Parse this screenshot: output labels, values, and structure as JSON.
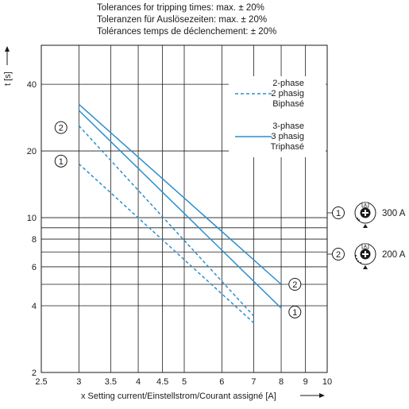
{
  "header": {
    "tolerance_en": "Tolerances for tripping times: max. ± 20%",
    "tolerance_de": "Toleranzen für Auslösezeiten: max. ± 20%",
    "tolerance_fr": "Tolérances temps de déclenchement: ± 20%"
  },
  "chart_data": {
    "type": "line",
    "xlabel": "x Setting current/Einstellstrom/Courant assigné [A]",
    "ylabel": "t [s]",
    "xscale": "log",
    "yscale": "log",
    "xlim": [
      2.5,
      10
    ],
    "ylim": [
      2,
      60
    ],
    "x_ticks": [
      2.5,
      3,
      3.5,
      4,
      4.5,
      5,
      6,
      7,
      8,
      9,
      10
    ],
    "x_tick_labels": [
      "2.5",
      "3",
      "3.5",
      "4",
      "4.5",
      "5",
      "6",
      "7",
      "8",
      "9",
      "10"
    ],
    "y_ticks": [
      2,
      4,
      6,
      8,
      10,
      20,
      40
    ],
    "y_tick_labels": [
      "2",
      "4",
      "6",
      "8",
      "10",
      "20",
      "40"
    ],
    "x_gridlines": [
      2.5,
      3,
      3.5,
      4,
      4.5,
      5,
      6,
      7,
      8,
      9,
      10
    ],
    "y_gridlines": [
      2,
      4,
      5,
      6,
      7,
      8,
      9,
      10,
      20,
      40
    ],
    "grid": true,
    "legend": {
      "position": "top-right",
      "entries": [
        {
          "lines": [
            "2-phase",
            "2 phasig",
            "Biphasé"
          ],
          "style": "dashed"
        },
        {
          "lines": [
            "3-phase",
            "3 phasig",
            "Triphasé"
          ],
          "style": "solid"
        }
      ]
    },
    "series": [
      {
        "marker": "1",
        "style": "solid",
        "x": [
          3,
          8
        ],
        "y": [
          30.5,
          3.9
        ]
      },
      {
        "marker": "2",
        "style": "solid",
        "x": [
          3,
          8
        ],
        "y": [
          32.5,
          5.0
        ]
      },
      {
        "marker": "1",
        "style": "dashed",
        "x": [
          3,
          7
        ],
        "y": [
          17.5,
          3.35
        ]
      },
      {
        "marker": "2",
        "style": "dashed",
        "x": [
          3,
          7
        ],
        "y": [
          26,
          3.6
        ]
      }
    ],
    "curve_markers": [
      {
        "label": "2",
        "x": 2.75,
        "y": 25.5
      },
      {
        "label": "1",
        "x": 2.75,
        "y": 18
      },
      {
        "label": "2",
        "x": 8.55,
        "y": 5.0
      },
      {
        "label": "1",
        "x": 8.55,
        "y": 3.75
      }
    ],
    "setting_icons": [
      {
        "marker": "1",
        "label": "300 A"
      },
      {
        "marker": "2",
        "label": "200 A"
      }
    ],
    "colors": {
      "curve": "#2a8fcf",
      "grid": "#1a1a1a",
      "text": "#1a1a1a"
    }
  }
}
